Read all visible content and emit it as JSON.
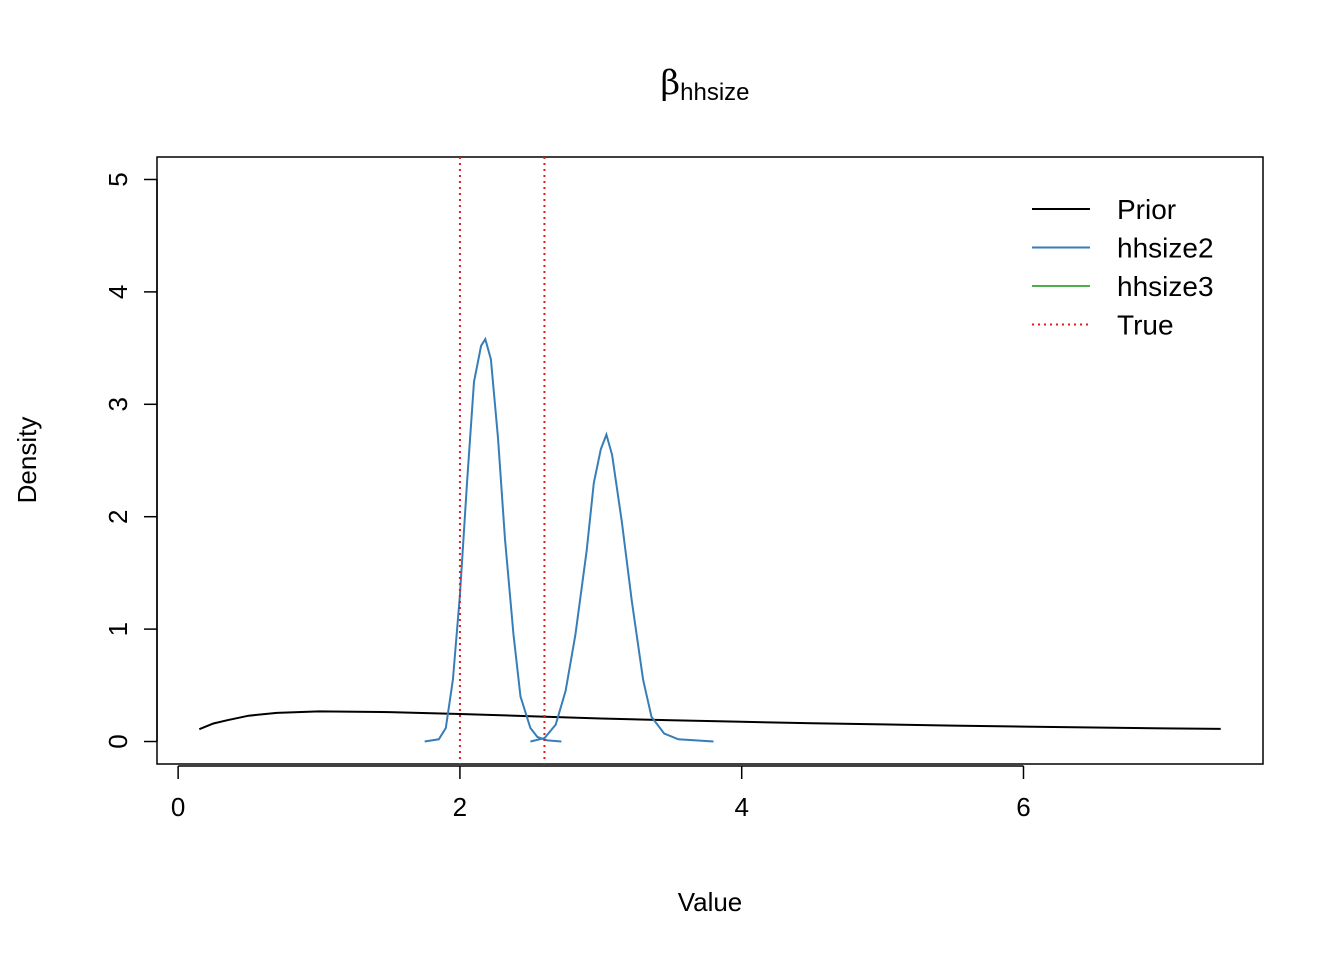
{
  "chart_data": {
    "type": "line",
    "title": "β",
    "title_subscript": "hhsize",
    "xlabel": "Value",
    "ylabel": "Density",
    "xlim": [
      -0.15,
      7.7
    ],
    "ylim": [
      -0.2,
      5.2
    ],
    "x_ticks": [
      0,
      2,
      4,
      6
    ],
    "y_ticks": [
      0,
      1,
      2,
      3,
      4,
      5
    ],
    "grid": false,
    "legend_position": "top-right",
    "legend": [
      {
        "label": "Prior",
        "color": "#000000",
        "style": "solid"
      },
      {
        "label": "hhsize2",
        "color": "#377EB8",
        "style": "solid"
      },
      {
        "label": "hhsize3",
        "color": "#4DAF4A",
        "style": "solid"
      },
      {
        "label": "True",
        "color": "#E41A1C",
        "style": "dotted"
      }
    ],
    "series": [
      {
        "name": "Prior",
        "color": "#000000",
        "points": [
          [
            0.15,
            0.11
          ],
          [
            0.25,
            0.16
          ],
          [
            0.35,
            0.19
          ],
          [
            0.5,
            0.23
          ],
          [
            0.7,
            0.255
          ],
          [
            1.0,
            0.268
          ],
          [
            1.5,
            0.262
          ],
          [
            2.0,
            0.245
          ],
          [
            2.5,
            0.225
          ],
          [
            3.0,
            0.205
          ],
          [
            3.5,
            0.19
          ],
          [
            4.0,
            0.175
          ],
          [
            4.5,
            0.163
          ],
          [
            5.0,
            0.152
          ],
          [
            5.5,
            0.142
          ],
          [
            6.0,
            0.133
          ],
          [
            6.5,
            0.125
          ],
          [
            7.0,
            0.117
          ],
          [
            7.4,
            0.112
          ]
        ]
      },
      {
        "name": "hhsize2",
        "color": "#377EB8",
        "points": [
          [
            1.75,
            0.0
          ],
          [
            1.85,
            0.02
          ],
          [
            1.9,
            0.12
          ],
          [
            1.95,
            0.55
          ],
          [
            2.0,
            1.3
          ],
          [
            2.05,
            2.3
          ],
          [
            2.1,
            3.2
          ],
          [
            2.15,
            3.52
          ],
          [
            2.18,
            3.58
          ],
          [
            2.22,
            3.4
          ],
          [
            2.27,
            2.7
          ],
          [
            2.32,
            1.8
          ],
          [
            2.38,
            0.95
          ],
          [
            2.43,
            0.4
          ],
          [
            2.5,
            0.12
          ],
          [
            2.55,
            0.04
          ],
          [
            2.62,
            0.01
          ],
          [
            2.72,
            0.0
          ]
        ]
      },
      {
        "name": "hhsize2",
        "color": "#377EB8",
        "points": [
          [
            2.5,
            0.0
          ],
          [
            2.6,
            0.03
          ],
          [
            2.68,
            0.15
          ],
          [
            2.75,
            0.45
          ],
          [
            2.82,
            0.95
          ],
          [
            2.9,
            1.7
          ],
          [
            2.95,
            2.3
          ],
          [
            3.0,
            2.6
          ],
          [
            3.04,
            2.73
          ],
          [
            3.08,
            2.55
          ],
          [
            3.15,
            1.95
          ],
          [
            3.22,
            1.25
          ],
          [
            3.3,
            0.55
          ],
          [
            3.36,
            0.22
          ],
          [
            3.45,
            0.07
          ],
          [
            3.55,
            0.02
          ],
          [
            3.8,
            0.0
          ]
        ]
      }
    ],
    "vlines": [
      2.0,
      2.6
    ]
  }
}
